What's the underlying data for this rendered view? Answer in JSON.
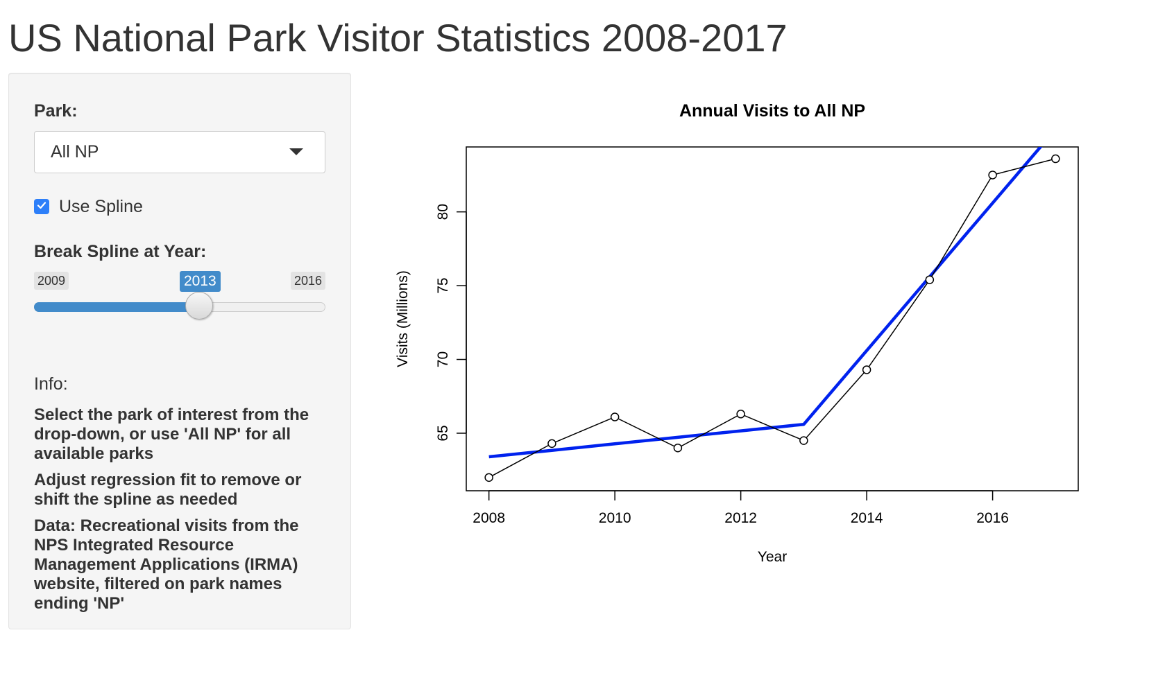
{
  "app": {
    "title": "US National Park Visitor Statistics 2008-2017"
  },
  "sidebar": {
    "park_label": "Park:",
    "park_selected": "All NP",
    "spline_checked": true,
    "spline_label": "Use Spline",
    "break_label": "Break Spline at Year:",
    "slider": {
      "min_label": "2009",
      "max_label": "2016",
      "value_label": "2013",
      "min": 2009,
      "max": 2016,
      "value": 2013
    },
    "info_heading": "Info:",
    "info_paragraphs": [
      "Select the park of interest from the drop-down, or use 'All NP' for all available parks",
      "Adjust regression fit to remove or shift the spline as needed",
      "Data: Recreational visits from the NPS Integrated Resource Management Applications (IRMA) website, filtered on park names ending 'NP'"
    ]
  },
  "colors": {
    "accent": "#428bca",
    "checkbox": "#2d7ff9",
    "fit_line": "#0022ee",
    "data_line": "#000000"
  },
  "chart_data": {
    "type": "line",
    "title": "Annual Visits to All NP",
    "xlabel": "Year",
    "ylabel": "Visits (Millions)",
    "x": [
      2008,
      2009,
      2010,
      2011,
      2012,
      2013,
      2014,
      2015,
      2016,
      2017
    ],
    "x_ticks": [
      2008,
      2010,
      2012,
      2014,
      2016
    ],
    "y_ticks": [
      65,
      70,
      75,
      80
    ],
    "xlim": [
      2007.64,
      2017.36
    ],
    "ylim": [
      61.1,
      84.4
    ],
    "series": [
      {
        "style": "line-with-open-circles",
        "values": [
          62.0,
          64.3,
          66.1,
          64.0,
          66.3,
          64.5,
          69.3,
          75.4,
          82.5,
          83.6
        ]
      },
      {
        "style": "spline-fit",
        "values": [
          63.4,
          63.84,
          64.28,
          64.72,
          65.16,
          65.6,
          70.6,
          75.6,
          80.6,
          85.6
        ]
      }
    ],
    "grid": false,
    "legend": "none"
  }
}
